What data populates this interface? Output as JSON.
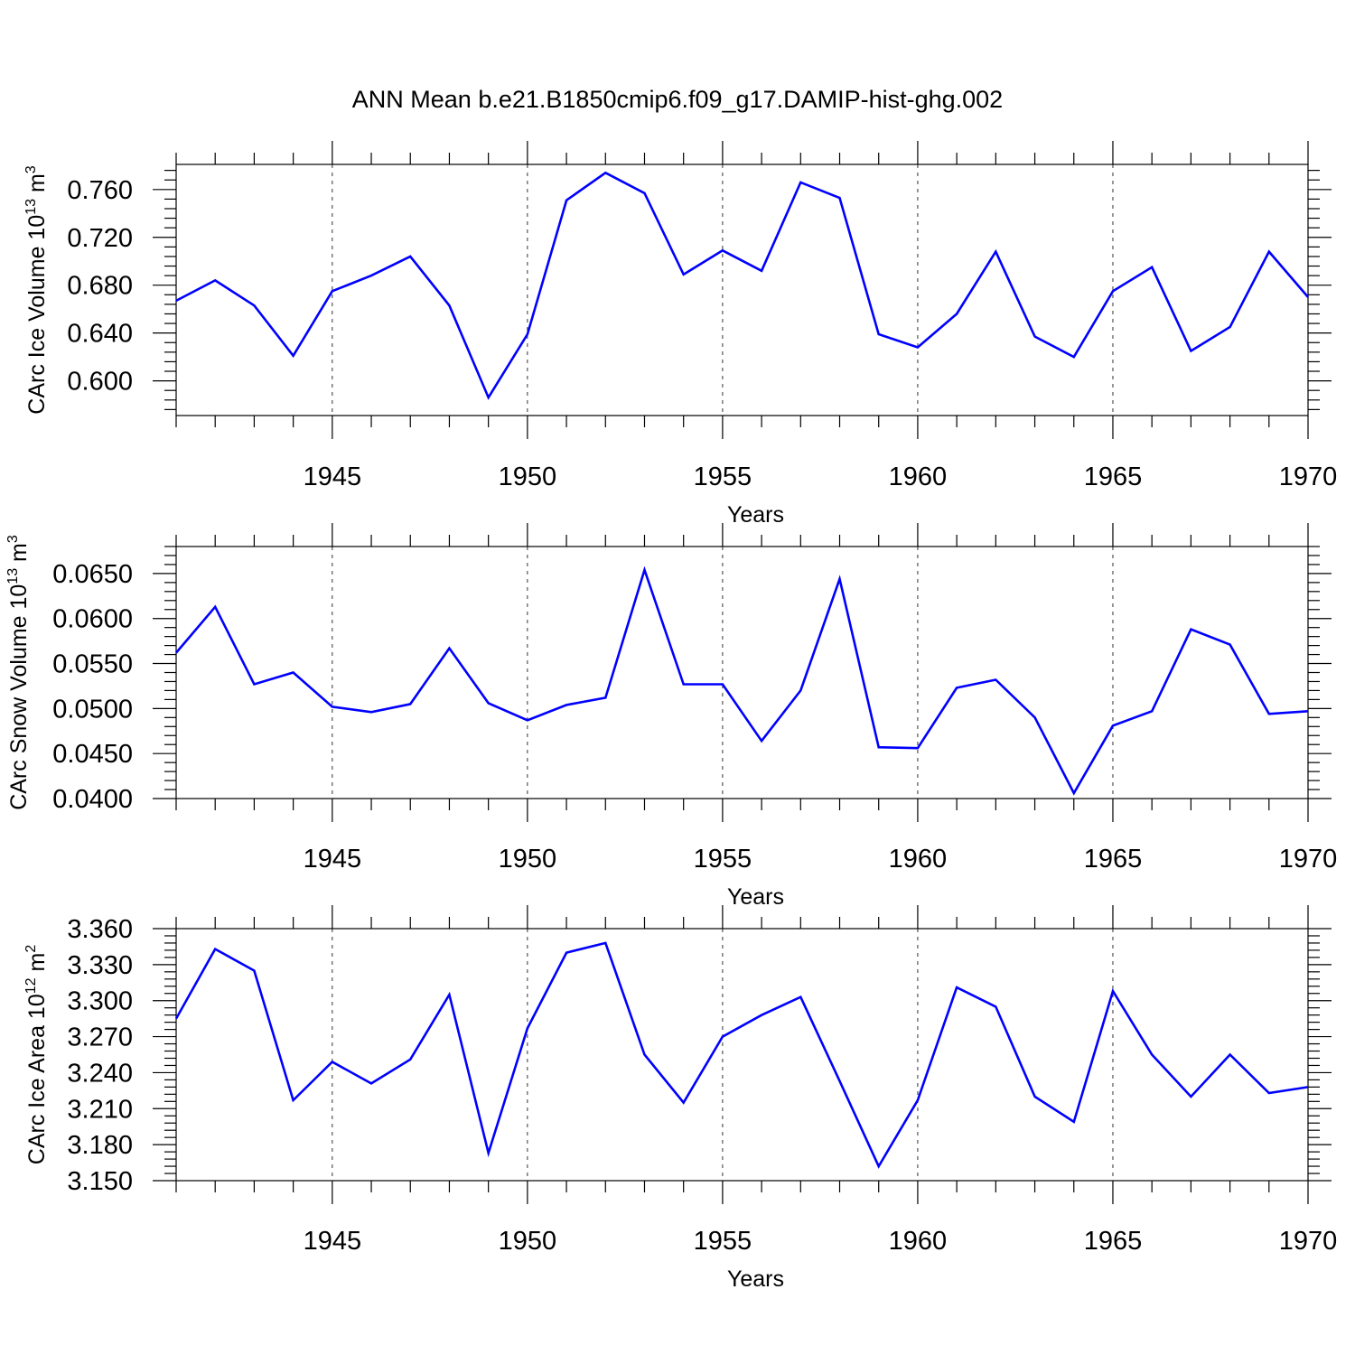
{
  "title": "ANN Mean b.e21.B1850cmip6.f09_g17.DAMIP-hist-ghg.002",
  "colors": {
    "line": "#0000ff",
    "frame": "#000000",
    "grid": "#333333"
  },
  "chart_data": [
    {
      "type": "line",
      "ylabel": "CArc Ice Volume",
      "ylabel_exp": "10",
      "ylabel_exp_power": "13",
      "ylabel_unit": "m",
      "ylabel_unit_power": "3",
      "xlabel": "Years",
      "xlim": [
        1941,
        1970
      ],
      "ylim": [
        0.571,
        0.781
      ],
      "xticks": [
        1945,
        1950,
        1955,
        1960,
        1965,
        1970
      ],
      "yticks": [
        0.6,
        0.64,
        0.68,
        0.72,
        0.76
      ],
      "yticklabels": [
        "0.600",
        "0.640",
        "0.680",
        "0.720",
        "0.760"
      ],
      "grid": "vertical dashed at major x ticks",
      "x": [
        1941,
        1942,
        1943,
        1944,
        1945,
        1946,
        1947,
        1948,
        1949,
        1950,
        1951,
        1952,
        1953,
        1954,
        1955,
        1956,
        1957,
        1958,
        1959,
        1960,
        1961,
        1962,
        1963,
        1964,
        1965,
        1966,
        1967,
        1968,
        1969,
        1970
      ],
      "y": [
        0.667,
        0.684,
        0.663,
        0.621,
        0.675,
        0.688,
        0.704,
        0.663,
        0.586,
        0.639,
        0.751,
        0.774,
        0.757,
        0.689,
        0.709,
        0.692,
        0.766,
        0.753,
        0.639,
        0.628,
        0.656,
        0.708,
        0.637,
        0.62,
        0.675,
        0.695,
        0.625,
        0.645,
        0.708,
        0.67
      ]
    },
    {
      "type": "line",
      "ylabel": "CArc Snow Volume",
      "ylabel_exp": "10",
      "ylabel_exp_power": "13",
      "ylabel_unit": "m",
      "ylabel_unit_power": "3",
      "xlabel": "Years",
      "xlim": [
        1941,
        1970
      ],
      "ylim": [
        0.04,
        0.068
      ],
      "xticks": [
        1945,
        1950,
        1955,
        1960,
        1965,
        1970
      ],
      "yticks": [
        0.04,
        0.045,
        0.05,
        0.055,
        0.06,
        0.065
      ],
      "yticklabels": [
        "0.0400",
        "0.0450",
        "0.0500",
        "0.0550",
        "0.0600",
        "0.0650"
      ],
      "grid": "vertical dashed at major x ticks",
      "x": [
        1941,
        1942,
        1943,
        1944,
        1945,
        1946,
        1947,
        1948,
        1949,
        1950,
        1951,
        1952,
        1953,
        1954,
        1955,
        1956,
        1957,
        1958,
        1959,
        1960,
        1961,
        1962,
        1963,
        1964,
        1965,
        1966,
        1967,
        1968,
        1969,
        1970
      ],
      "y": [
        0.0562,
        0.0613,
        0.0527,
        0.054,
        0.0502,
        0.0496,
        0.0505,
        0.0567,
        0.0506,
        0.0487,
        0.0504,
        0.0512,
        0.0654,
        0.0527,
        0.0527,
        0.0464,
        0.052,
        0.0644,
        0.0457,
        0.0456,
        0.0523,
        0.0532,
        0.049,
        0.0406,
        0.0481,
        0.0497,
        0.0588,
        0.0571,
        0.0494,
        0.0497
      ]
    },
    {
      "type": "line",
      "ylabel": "CArc Ice Area",
      "ylabel_exp": "10",
      "ylabel_exp_power": "12",
      "ylabel_unit": "m",
      "ylabel_unit_power": "2",
      "xlabel": "Years",
      "xlim": [
        1941,
        1970
      ],
      "ylim": [
        3.15,
        3.36
      ],
      "xticks": [
        1945,
        1950,
        1955,
        1960,
        1965,
        1970
      ],
      "yticks": [
        3.15,
        3.18,
        3.21,
        3.24,
        3.27,
        3.3,
        3.33,
        3.36
      ],
      "yticklabels": [
        "3.150",
        "3.180",
        "3.210",
        "3.240",
        "3.270",
        "3.300",
        "3.330",
        "3.360"
      ],
      "grid": "vertical dashed at major x ticks",
      "x": [
        1941,
        1942,
        1943,
        1944,
        1945,
        1946,
        1947,
        1948,
        1949,
        1950,
        1951,
        1952,
        1953,
        1954,
        1955,
        1956,
        1957,
        1958,
        1959,
        1960,
        1961,
        1962,
        1963,
        1964,
        1965,
        1966,
        1967,
        1968,
        1969,
        1970
      ],
      "y": [
        3.285,
        3.343,
        3.325,
        3.217,
        3.249,
        3.231,
        3.251,
        3.305,
        3.173,
        3.277,
        3.34,
        3.348,
        3.255,
        3.215,
        3.27,
        3.288,
        3.303,
        3.233,
        3.162,
        3.217,
        3.311,
        3.295,
        3.22,
        3.199,
        3.308,
        3.255,
        3.22,
        3.255,
        3.223,
        3.228
      ]
    }
  ]
}
